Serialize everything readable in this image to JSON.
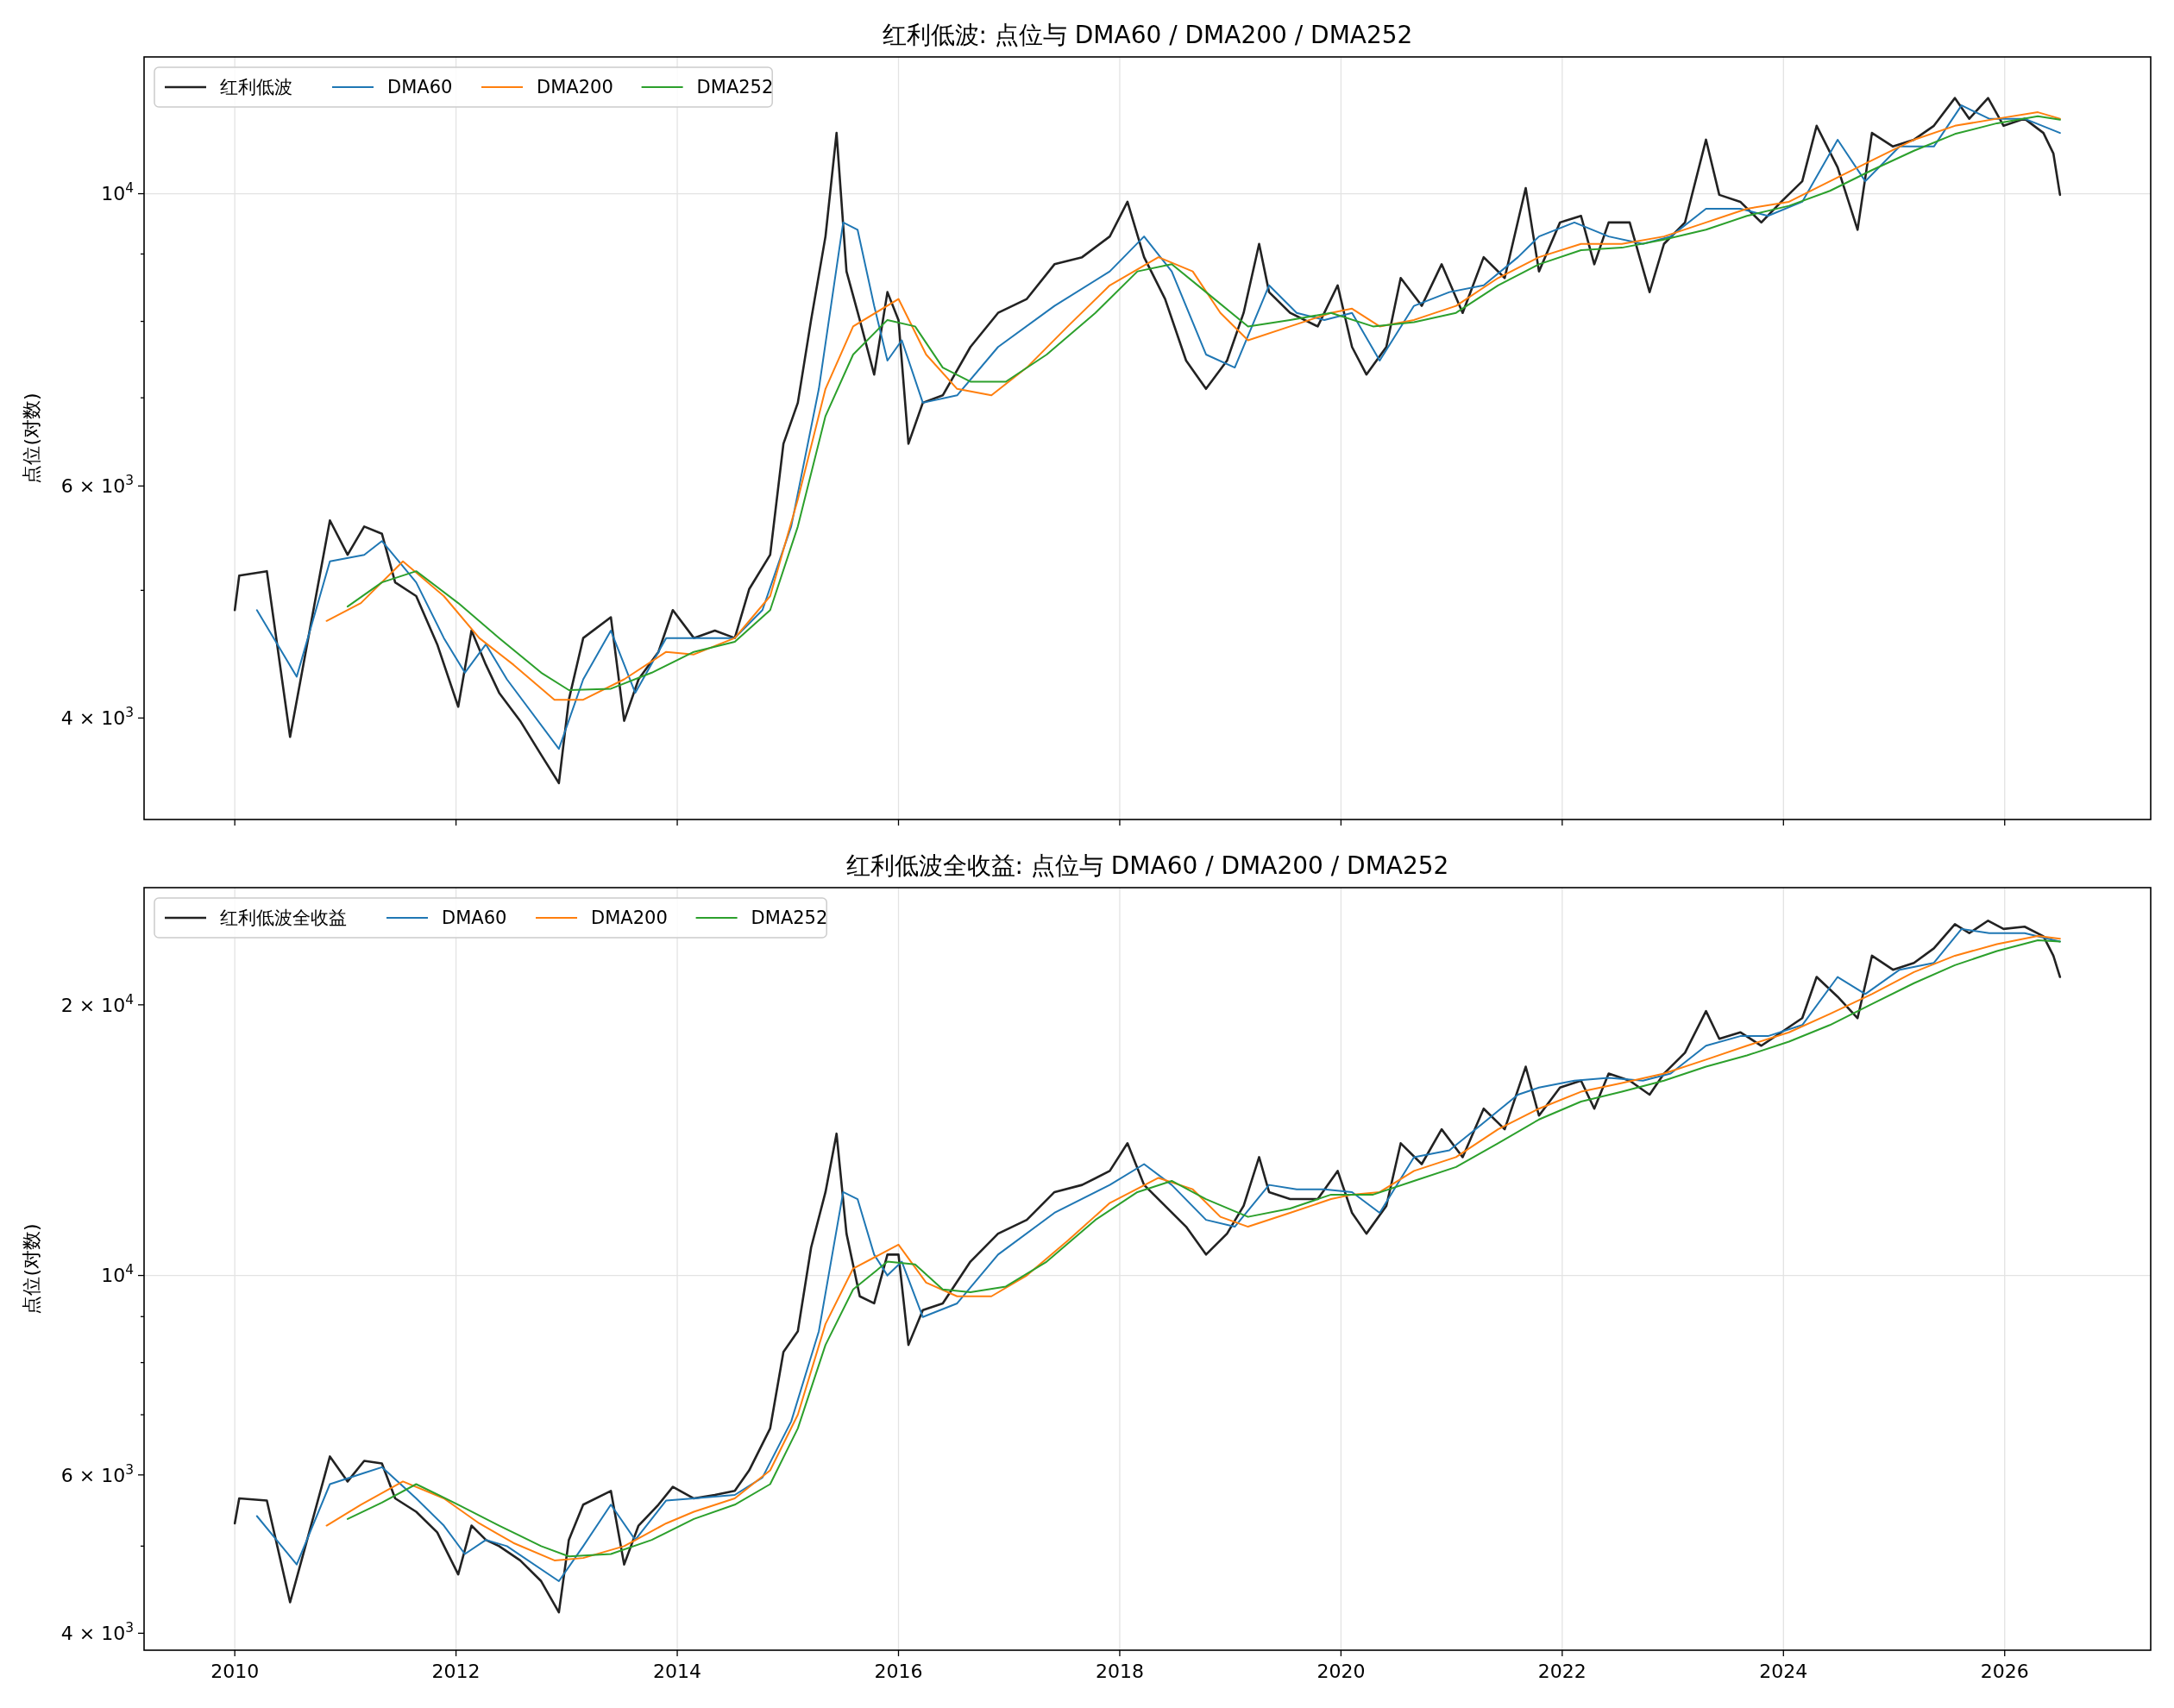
{
  "chart_data": [
    {
      "type": "line",
      "title": "红利低波: 点位与 DMA60 / DMA200 / DMA252",
      "ylabel": "点位(对数)",
      "log": "y",
      "grid": true,
      "legend": "top left",
      "tick_labels": "y",
      "xlim": [
        2009.18,
        2027.32
      ],
      "xticks": [
        2010,
        2012,
        2014,
        2016,
        2018,
        2020,
        2022,
        2024,
        2026
      ],
      "ylim": [
        3350,
        12700
      ],
      "yticks": [
        {
          "value": 4000,
          "label": "4 × 10$^{3}$"
        },
        {
          "value": 5000,
          "label": null
        },
        {
          "value": 6000,
          "label": "6 × 10$^{3}$"
        },
        {
          "value": 7000,
          "label": null
        },
        {
          "value": 8000,
          "label": null
        },
        {
          "value": 9000,
          "label": null
        },
        {
          "value": 10000,
          "label": "10$^{4}$"
        }
      ],
      "series": [
        {
          "name": "红利低波",
          "color": "#222222",
          "x": [
            2010.0,
            2010.04,
            2010.29,
            2010.5,
            2010.86,
            2011.02,
            2011.17,
            2011.33,
            2011.45,
            2011.64,
            2011.83,
            2012.02,
            2012.14,
            2012.27,
            2012.39,
            2012.58,
            2012.77,
            2012.93,
            2013.02,
            2013.15,
            2013.4,
            2013.52,
            2013.65,
            2013.83,
            2013.96,
            2014.15,
            2014.34,
            2014.52,
            2014.65,
            2014.84,
            2014.96,
            2015.09,
            2015.21,
            2015.34,
            2015.44,
            2015.53,
            2015.65,
            2015.78,
            2015.9,
            2016.0,
            2016.09,
            2016.22,
            2016.4,
            2016.65,
            2016.9,
            2017.16,
            2017.41,
            2017.66,
            2017.91,
            2018.07,
            2018.22,
            2018.41,
            2018.6,
            2018.78,
            2018.97,
            2019.12,
            2019.26,
            2019.35,
            2019.54,
            2019.79,
            2019.97,
            2020.1,
            2020.23,
            2020.41,
            2020.54,
            2020.73,
            2020.91,
            2021.1,
            2021.29,
            2021.48,
            2021.67,
            2021.79,
            2021.98,
            2022.17,
            2022.29,
            2022.42,
            2022.61,
            2022.79,
            2022.92,
            2023.11,
            2023.3,
            2023.42,
            2023.61,
            2023.8,
            2023.98,
            2024.17,
            2024.3,
            2024.49,
            2024.67,
            2024.8,
            2024.99,
            2025.18,
            2025.36,
            2025.55,
            2025.68,
            2025.85,
            2025.99,
            2026.18,
            2026.35,
            2026.44,
            2026.5
          ],
          "values": [
            4830,
            5130,
            5170,
            3870,
            5650,
            5320,
            5590,
            5520,
            5070,
            4950,
            4550,
            4080,
            4660,
            4390,
            4180,
            3980,
            3750,
            3570,
            4130,
            4600,
            4770,
            3980,
            4280,
            4490,
            4830,
            4600,
            4660,
            4600,
            5010,
            5320,
            6460,
            6940,
            8020,
            9280,
            11120,
            8730,
            8020,
            7290,
            8420,
            8020,
            6460,
            6940,
            7030,
            7650,
            8120,
            8320,
            8840,
            8950,
            9280,
            9860,
            8950,
            8320,
            7470,
            7110,
            7470,
            8120,
            9160,
            8420,
            8120,
            7930,
            8520,
            7650,
            7290,
            7650,
            8630,
            8220,
            8840,
            8120,
            8950,
            8630,
            10100,
            8730,
            9510,
            9620,
            8840,
            9510,
            9510,
            8420,
            9160,
            9510,
            10990,
            9980,
            9860,
            9510,
            9860,
            10220,
            11260,
            10470,
            9390,
            11120,
            10860,
            10990,
            11260,
            11820,
            11400,
            11820,
            11260,
            11400,
            11120,
            10730,
            9980
          ]
        },
        {
          "name": "DMA60",
          "color": "#1f77b4",
          "x": [
            2010.2,
            2010.56,
            2010.86,
            2011.17,
            2011.33,
            2011.64,
            2011.89,
            2012.08,
            2012.27,
            2012.46,
            2012.93,
            2013.15,
            2013.4,
            2013.62,
            2013.9,
            2014.15,
            2014.52,
            2014.77,
            2015.03,
            2015.28,
            2015.5,
            2015.63,
            2015.78,
            2015.9,
            2016.03,
            2016.22,
            2016.53,
            2016.9,
            2017.41,
            2017.91,
            2018.22,
            2018.47,
            2018.78,
            2019.04,
            2019.35,
            2019.6,
            2019.85,
            2020.1,
            2020.35,
            2020.66,
            2020.98,
            2021.29,
            2021.6,
            2021.79,
            2022.11,
            2022.42,
            2022.73,
            2022.98,
            2023.3,
            2023.61,
            2023.86,
            2024.17,
            2024.49,
            2024.74,
            2025.05,
            2025.36,
            2025.61,
            2025.86,
            2026.18,
            2026.5
          ],
          "values": [
            4830,
            4300,
            5260,
            5320,
            5450,
            5070,
            4600,
            4330,
            4550,
            4280,
            3790,
            4280,
            4660,
            4180,
            4600,
            4600,
            4600,
            4830,
            5590,
            7110,
            9510,
            9390,
            8220,
            7470,
            7740,
            6940,
            7030,
            7650,
            8220,
            8730,
            9280,
            8730,
            7550,
            7380,
            8520,
            8120,
            8020,
            8120,
            7470,
            8220,
            8420,
            8520,
            8950,
            9280,
            9510,
            9280,
            9160,
            9280,
            9740,
            9740,
            9620,
            9860,
            10990,
            10220,
            10860,
            10860,
            11670,
            11400,
            11400,
            11120
          ]
        },
        {
          "name": "DMA200",
          "color": "#ff7f0e",
          "x": [
            2010.83,
            2011.14,
            2011.52,
            2011.89,
            2012.21,
            2012.52,
            2012.89,
            2013.15,
            2013.52,
            2013.9,
            2014.15,
            2014.52,
            2014.84,
            2015.09,
            2015.34,
            2015.59,
            2016.0,
            2016.25,
            2016.53,
            2016.84,
            2017.16,
            2017.53,
            2017.91,
            2018.35,
            2018.66,
            2018.91,
            2019.16,
            2019.54,
            2019.91,
            2020.1,
            2020.35,
            2020.66,
            2021.04,
            2021.42,
            2021.79,
            2022.17,
            2022.54,
            2022.92,
            2023.3,
            2023.67,
            2024.05,
            2024.42,
            2024.8,
            2025.18,
            2025.55,
            2025.93,
            2026.3,
            2026.5
          ],
          "values": [
            4740,
            4890,
            5260,
            4950,
            4600,
            4390,
            4130,
            4130,
            4280,
            4490,
            4470,
            4600,
            4950,
            5860,
            7110,
            7930,
            8320,
            7550,
            7110,
            7030,
            7380,
            7930,
            8520,
            8950,
            8730,
            8120,
            7740,
            7930,
            8120,
            8180,
            7930,
            8020,
            8220,
            8630,
            8950,
            9160,
            9160,
            9280,
            9510,
            9740,
            9860,
            10220,
            10600,
            10990,
            11260,
            11400,
            11530,
            11400
          ]
        },
        {
          "name": "DMA252",
          "color": "#2ca02c",
          "x": [
            2011.02,
            2011.33,
            2011.64,
            2012.02,
            2012.39,
            2012.77,
            2013.02,
            2013.4,
            2013.77,
            2014.15,
            2014.52,
            2014.84,
            2015.09,
            2015.34,
            2015.59,
            2015.9,
            2016.15,
            2016.4,
            2016.65,
            2016.97,
            2017.34,
            2017.78,
            2018.16,
            2018.47,
            2018.78,
            2019.16,
            2019.54,
            2019.91,
            2020.29,
            2020.66,
            2021.04,
            2021.42,
            2021.79,
            2022.17,
            2022.54,
            2022.92,
            2023.3,
            2023.67,
            2024.05,
            2024.42,
            2024.8,
            2025.18,
            2025.55,
            2025.93,
            2026.3,
            2026.5
          ],
          "values": [
            4860,
            5070,
            5170,
            4890,
            4600,
            4330,
            4200,
            4210,
            4330,
            4490,
            4570,
            4830,
            5590,
            6780,
            7550,
            8020,
            7930,
            7380,
            7200,
            7200,
            7550,
            8120,
            8730,
            8840,
            8420,
            7930,
            8020,
            8120,
            7930,
            7990,
            8120,
            8520,
            8840,
            9060,
            9100,
            9230,
            9390,
            9620,
            9790,
            10050,
            10420,
            10780,
            11100,
            11310,
            11450,
            11380
          ]
        }
      ]
    },
    {
      "type": "line",
      "title": "红利低波全收益: 点位与 DMA60 / DMA200 / DMA252",
      "ylabel": "点位(对数)",
      "log": "y",
      "grid": true,
      "legend": "top left",
      "xlim": [
        2009.18,
        2027.32
      ],
      "xticks": [
        2010,
        2012,
        2014,
        2016,
        2018,
        2020,
        2022,
        2024,
        2026
      ],
      "ylim": [
        3830,
        27000
      ],
      "yticks": [
        {
          "value": 4000,
          "label": "4 × 10$^{3}$"
        },
        {
          "value": 5000,
          "label": null
        },
        {
          "value": 6000,
          "label": "6 × 10$^{3}$"
        },
        {
          "value": 7000,
          "label": null
        },
        {
          "value": 8000,
          "label": null
        },
        {
          "value": 9000,
          "label": null
        },
        {
          "value": 10000,
          "label": "10$^{4}$"
        },
        {
          "value": 20000,
          "label": "2 × 10$^{4}$"
        }
      ],
      "series": [
        {
          "name": "红利低波全收益",
          "color": "#222222",
          "x": [
            2010.0,
            2010.04,
            2010.29,
            2010.5,
            2010.86,
            2011.02,
            2011.17,
            2011.33,
            2011.45,
            2011.64,
            2011.83,
            2012.02,
            2012.14,
            2012.27,
            2012.39,
            2012.58,
            2012.77,
            2012.93,
            2013.02,
            2013.15,
            2013.4,
            2013.52,
            2013.65,
            2013.83,
            2013.96,
            2014.15,
            2014.34,
            2014.52,
            2014.65,
            2014.84,
            2014.96,
            2015.09,
            2015.21,
            2015.34,
            2015.44,
            2015.53,
            2015.65,
            2015.78,
            2015.9,
            2016.0,
            2016.09,
            2016.22,
            2016.4,
            2016.65,
            2016.9,
            2017.16,
            2017.41,
            2017.66,
            2017.91,
            2018.07,
            2018.22,
            2018.41,
            2018.6,
            2018.78,
            2018.97,
            2019.12,
            2019.26,
            2019.35,
            2019.54,
            2019.79,
            2019.97,
            2020.1,
            2020.23,
            2020.41,
            2020.54,
            2020.73,
            2020.91,
            2021.1,
            2021.29,
            2021.48,
            2021.67,
            2021.79,
            2021.98,
            2022.17,
            2022.29,
            2022.42,
            2022.61,
            2022.79,
            2022.92,
            2023.11,
            2023.3,
            2023.42,
            2023.61,
            2023.8,
            2023.98,
            2024.17,
            2024.3,
            2024.49,
            2024.67,
            2024.8,
            2024.99,
            2025.18,
            2025.36,
            2025.55,
            2025.68,
            2025.85,
            2025.99,
            2026.18,
            2026.35,
            2026.44,
            2026.5
          ],
          "values": [
            5300,
            5650,
            5620,
            4330,
            6290,
            5900,
            6220,
            6180,
            5650,
            5460,
            5180,
            4650,
            5270,
            5080,
            5000,
            4820,
            4570,
            4220,
            5080,
            5560,
            5760,
            4770,
            5270,
            5560,
            5820,
            5650,
            5700,
            5760,
            6070,
            6760,
            8220,
            8670,
            10740,
            12380,
            14380,
            11130,
            9480,
            9310,
            10550,
            10550,
            8370,
            9150,
            9310,
            10360,
            11130,
            11530,
            12380,
            12610,
            13070,
            14030,
            12610,
            11950,
            11330,
            10550,
            11130,
            11950,
            13540,
            12380,
            12160,
            12160,
            13070,
            11740,
            11130,
            11950,
            14030,
            13300,
            14540,
            13540,
            15330,
            14540,
            17070,
            15060,
            16180,
            16470,
            15330,
            16770,
            16470,
            15890,
            16770,
            17690,
            19680,
            18330,
            18640,
            18010,
            18640,
            19330,
            21480,
            20420,
            19330,
            22680,
            21880,
            22270,
            23110,
            24590,
            24030,
            24810,
            24290,
            24430,
            23840,
            22680,
            21480
          ]
        },
        {
          "name": "DMA60",
          "color": "#1f77b4",
          "x": [
            2010.2,
            2010.56,
            2010.86,
            2011.17,
            2011.33,
            2011.64,
            2011.89,
            2012.08,
            2012.27,
            2012.46,
            2012.93,
            2013.15,
            2013.4,
            2013.62,
            2013.9,
            2014.15,
            2014.52,
            2014.77,
            2015.03,
            2015.28,
            2015.5,
            2015.63,
            2015.78,
            2015.9,
            2016.03,
            2016.22,
            2016.53,
            2016.9,
            2017.41,
            2017.91,
            2018.22,
            2018.47,
            2018.78,
            2019.04,
            2019.35,
            2019.6,
            2019.85,
            2020.1,
            2020.35,
            2020.66,
            2020.98,
            2021.29,
            2021.6,
            2021.79,
            2022.11,
            2022.42,
            2022.73,
            2022.98,
            2023.3,
            2023.61,
            2023.86,
            2024.17,
            2024.49,
            2024.74,
            2025.05,
            2025.36,
            2025.61,
            2025.86,
            2026.18,
            2026.5
          ],
          "values": [
            5400,
            4770,
            5860,
            6030,
            6120,
            5650,
            5270,
            4900,
            5080,
            5000,
            4570,
            5000,
            5560,
            5080,
            5620,
            5650,
            5700,
            5960,
            6880,
            8670,
            12380,
            12160,
            10550,
            10000,
            10360,
            8990,
            9310,
            10550,
            11740,
            12610,
            13300,
            12610,
            11530,
            11330,
            12610,
            12470,
            12470,
            12380,
            11740,
            13540,
            13780,
            14790,
            15890,
            16180,
            16470,
            16590,
            16470,
            16770,
            18010,
            18460,
            18460,
            18990,
            21480,
            20560,
            21880,
            22270,
            24290,
            24030,
            24030,
            23520
          ]
        },
        {
          "name": "DMA200",
          "color": "#ff7f0e",
          "x": [
            2010.83,
            2011.14,
            2011.52,
            2011.89,
            2012.21,
            2012.52,
            2012.89,
            2013.15,
            2013.52,
            2013.9,
            2014.15,
            2014.52,
            2014.84,
            2015.09,
            2015.34,
            2015.59,
            2016.0,
            2016.25,
            2016.53,
            2016.84,
            2017.16,
            2017.53,
            2017.91,
            2018.35,
            2018.66,
            2018.91,
            2019.16,
            2019.54,
            2019.91,
            2020.1,
            2020.35,
            2020.66,
            2021.04,
            2021.42,
            2021.79,
            2022.17,
            2022.54,
            2022.92,
            2023.3,
            2023.67,
            2024.05,
            2024.42,
            2024.8,
            2025.18,
            2025.55,
            2025.93,
            2026.3,
            2026.5
          ],
          "values": [
            5270,
            5560,
            5900,
            5650,
            5300,
            5040,
            4820,
            4850,
            5000,
            5300,
            5460,
            5650,
            6070,
            7000,
            8830,
            10180,
            10820,
            9820,
            9480,
            9480,
            10000,
            10930,
            12040,
            12840,
            12470,
            11620,
            11330,
            11740,
            12160,
            12300,
            12380,
            13070,
            13540,
            14540,
            15330,
            16010,
            16370,
            16770,
            17380,
            18010,
            18640,
            19540,
            20560,
            21750,
            22680,
            23360,
            23860,
            23690
          ]
        },
        {
          "name": "DMA252",
          "color": "#2ca02c",
          "x": [
            2011.02,
            2011.33,
            2011.64,
            2012.02,
            2012.39,
            2012.77,
            2013.02,
            2013.4,
            2013.77,
            2014.15,
            2014.52,
            2014.84,
            2015.09,
            2015.34,
            2015.59,
            2015.9,
            2016.15,
            2016.4,
            2016.65,
            2016.97,
            2017.34,
            2017.78,
            2018.16,
            2018.47,
            2018.78,
            2019.16,
            2019.54,
            2019.91,
            2020.29,
            2020.66,
            2021.04,
            2021.42,
            2021.79,
            2022.17,
            2022.54,
            2022.92,
            2023.3,
            2023.67,
            2024.05,
            2024.42,
            2024.8,
            2025.18,
            2025.55,
            2025.93,
            2026.3,
            2026.5
          ],
          "values": [
            5360,
            5590,
            5860,
            5560,
            5270,
            5000,
            4870,
            4900,
            5080,
            5360,
            5560,
            5860,
            6760,
            8370,
            9650,
            10360,
            10290,
            9650,
            9580,
            9720,
            10360,
            11530,
            12380,
            12740,
            12160,
            11620,
            11870,
            12300,
            12300,
            12740,
            13200,
            14030,
            14910,
            15610,
            16010,
            16470,
            17070,
            17570,
            18200,
            18990,
            20040,
            21140,
            22140,
            22950,
            23600,
            23520
          ]
        }
      ]
    }
  ]
}
